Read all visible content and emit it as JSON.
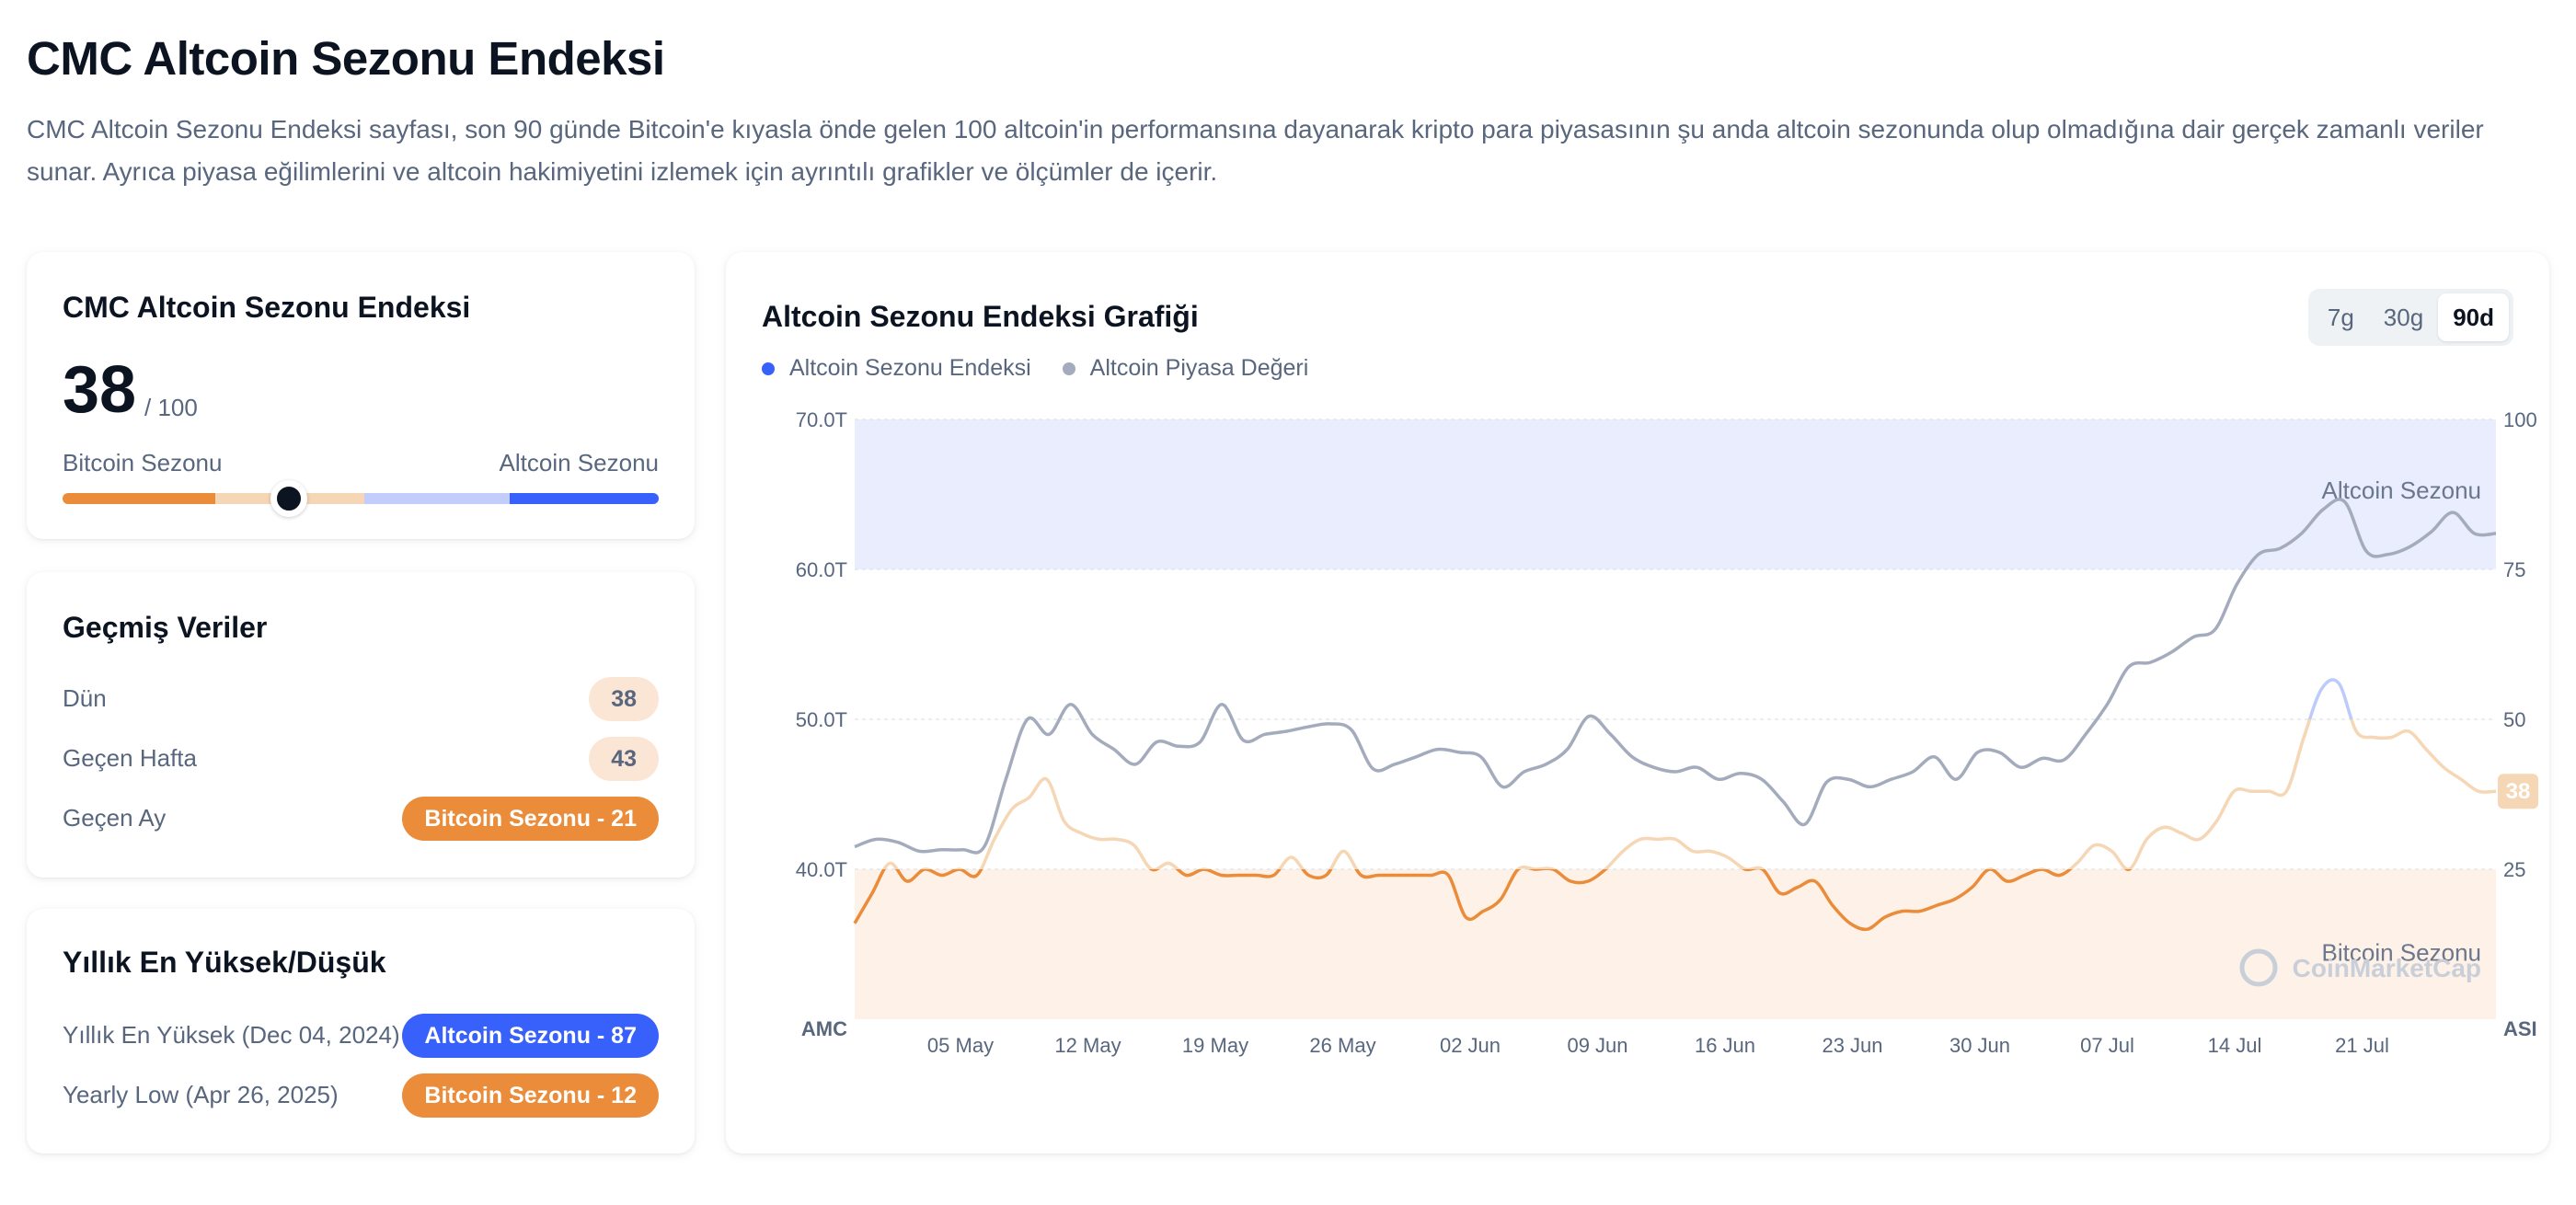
{
  "page": {
    "title": "CMC Altcoin Sezonu Endeksi",
    "description": "CMC Altcoin Sezonu Endeksi sayfası, son 90 günde Bitcoin'e kıyasla önde gelen 100 altcoin'in performansına dayanarak kripto para piyasasının şu anda altcoin sezonunda olup olmadığına dair gerçek zamanlı veriler sunar. Ayrıca piyasa eğilimlerini ve altcoin hakimiyetini izlemek için ayrıntılı grafikler ve ölçümler de içerir."
  },
  "index_card": {
    "title": "CMC Altcoin Sezonu Endeksi",
    "score": "38",
    "score_max": "/ 100",
    "score_value": 38,
    "left_label": "Bitcoin Sezonu",
    "right_label": "Altcoin Sezonu"
  },
  "history": {
    "title": "Geçmiş Veriler",
    "rows": [
      {
        "label": "Dün",
        "value": "38"
      },
      {
        "label": "Geçen Hafta",
        "value": "43"
      },
      {
        "label": "Geçen Ay",
        "value": "Bitcoin Sezonu - 21"
      }
    ]
  },
  "yearly": {
    "title": "Yıllık En Yüksek/Düşük",
    "high_label": "Yıllık En Yüksek",
    "high_date": "(Dec 04, 2024)",
    "high_value": "Altcoin Sezonu - 87",
    "low_label": "Yearly Low",
    "low_date": "(Apr 26, 2025)",
    "low_value": "Bitcoin Sezonu - 12"
  },
  "chart_card": {
    "title": "Altcoin Sezonu Endeksi Grafiği",
    "ranges": [
      "7g",
      "30g",
      "90d"
    ],
    "active_range": "90d",
    "legend": [
      "Altcoin Sezonu Endeksi",
      "Altcoin Piyasa Değeri"
    ],
    "zone_top_label": "Altcoin Sezonu",
    "zone_bottom_label": "Bitcoin Sezonu",
    "left_axis_caption": "AMC",
    "right_axis_caption": "ASI",
    "watermark": "CoinMarketCap",
    "current_badge": "38"
  },
  "colors": {
    "blue": "#3861fb",
    "orange": "#ea8c3a",
    "orange_light": "#f5d6b5",
    "gray_line": "#a3abbd",
    "blue_zone": "#e9edfd",
    "orange_zone": "#fdf1e8"
  },
  "chart_data": {
    "type": "line",
    "x_ticks": [
      "05 May",
      "12 May",
      "19 May",
      "26 May",
      "02 Jun",
      "09 Jun",
      "16 Jun",
      "23 Jun",
      "30 Jun",
      "07 Jul",
      "14 Jul",
      "21 Jul"
    ],
    "y_left_ticks": [
      "70.0T",
      "60.0T",
      "50.0T",
      "40.0T"
    ],
    "y_left_range": [
      30,
      70
    ],
    "y_right_ticks": [
      "100",
      "75",
      "50",
      "25"
    ],
    "y_right_range": [
      0,
      100
    ],
    "altcoin_zone_min": 75,
    "bitcoin_zone_max": 25,
    "series": [
      {
        "name": "Altcoin Sezonu Endeksi",
        "axis": "right",
        "values": [
          16,
          21,
          26,
          23,
          25,
          24,
          25,
          24,
          30,
          35,
          37,
          40,
          33,
          31,
          30,
          30,
          29,
          25,
          26,
          24,
          25,
          24,
          24,
          24,
          24,
          27,
          24,
          24,
          28,
          24,
          24,
          24,
          24,
          24,
          24,
          17,
          18,
          20,
          25,
          25,
          25,
          23,
          23,
          25,
          28,
          30,
          30,
          30,
          28,
          28,
          27,
          25,
          25,
          21,
          22,
          23,
          19,
          16,
          15,
          17,
          18,
          18,
          19,
          20,
          22,
          25,
          23,
          24,
          25,
          24,
          26,
          29,
          28,
          25,
          30,
          32,
          31,
          30,
          33,
          38,
          38,
          38,
          38,
          47,
          55,
          56,
          48,
          47,
          47,
          48,
          45,
          42,
          40,
          38,
          38
        ]
      },
      {
        "name": "Altcoin Piyasa Değeri",
        "axis": "left",
        "values": [
          41.5,
          42,
          41.8,
          41.2,
          41.3,
          41.3,
          41.5,
          46,
          50,
          49,
          51,
          49,
          48,
          47,
          48.5,
          48.2,
          48.5,
          51,
          48.6,
          49,
          49.2,
          49.5,
          49.7,
          49.3,
          46.7,
          47,
          47.5,
          48,
          47.8,
          47.5,
          45.5,
          46.5,
          47,
          48,
          50.2,
          49,
          47.5,
          46.8,
          46.5,
          46.8,
          46,
          46.4,
          46,
          44.5,
          43,
          45.8,
          46,
          45.5,
          46,
          46.5,
          47.5,
          46,
          47.8,
          47.8,
          46.8,
          47.4,
          47.3,
          49,
          51,
          53.5,
          53.8,
          54.5,
          55.5,
          56,
          59,
          61,
          61.4,
          62.4,
          64,
          64.5,
          61.2,
          61,
          61.5,
          62.5,
          63.8,
          62.4,
          62.4
        ]
      }
    ]
  }
}
